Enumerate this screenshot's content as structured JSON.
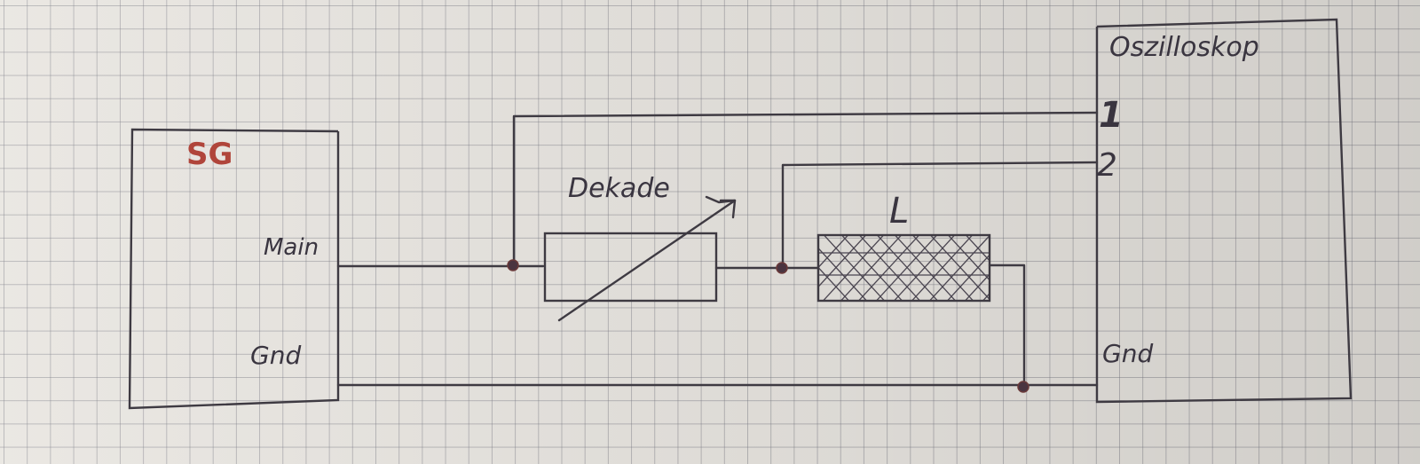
{
  "signal_generator": {
    "title": "SG",
    "main_label": "Main",
    "gnd_label": "Gnd"
  },
  "decade": {
    "label": "Dekade"
  },
  "inductor": {
    "label": "L"
  },
  "oscilloscope": {
    "title": "Oszilloskop",
    "ch1_label": "1",
    "ch2_label": "2",
    "gnd_label": "Gnd"
  },
  "colors": {
    "ink": "#3e3a42",
    "sg_title": "#b0453b",
    "paper": "#e8e5e0",
    "grid": "#78788a"
  }
}
